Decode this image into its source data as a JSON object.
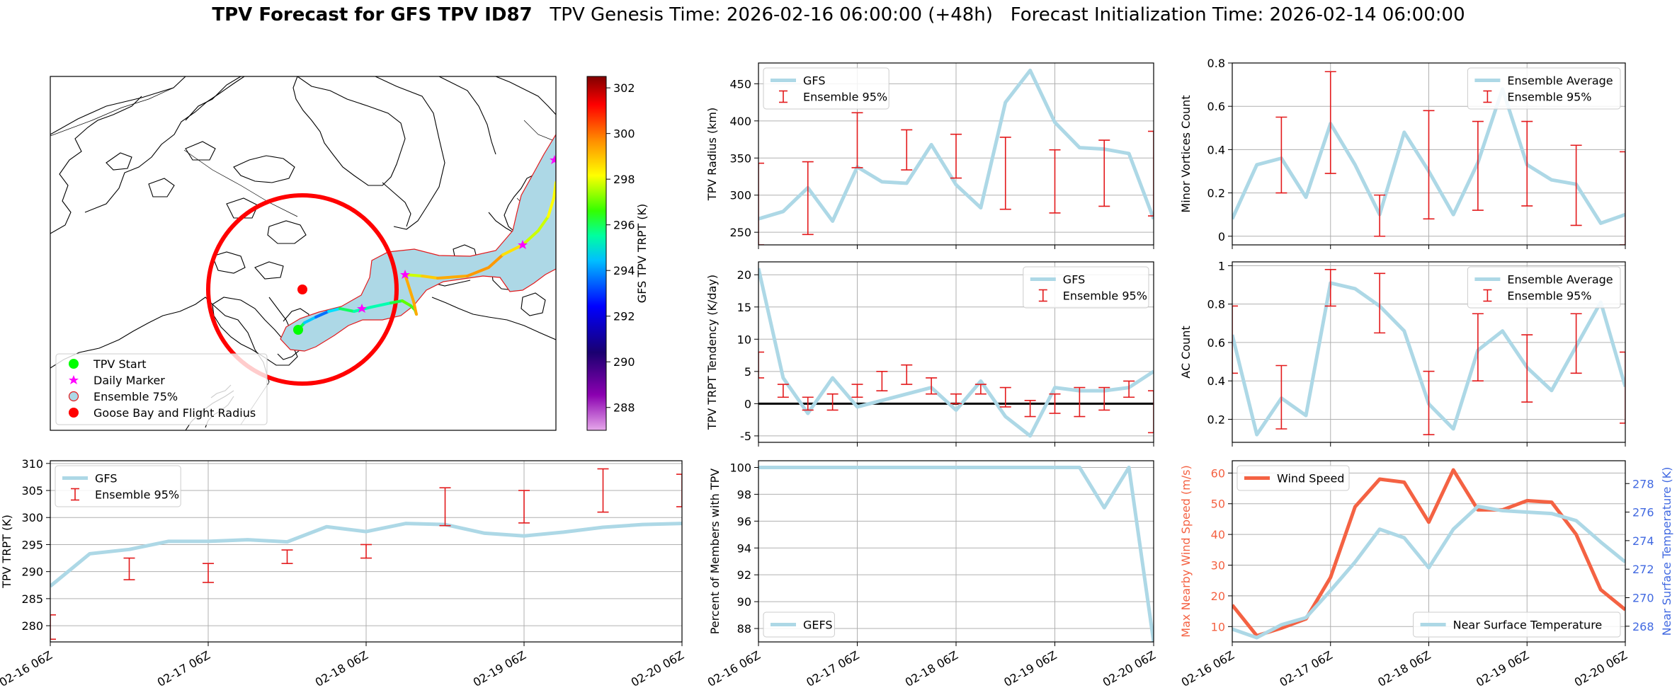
{
  "title": {
    "bold": "TPV Forecast for GFS TPV ID87",
    "genesis": "TPV Genesis Time: 2026-02-16 06:00:00 (+48h)",
    "init": "Forecast Initialization Time: 2026-02-14 06:00:00"
  },
  "colors": {
    "gfs": "#add8e6",
    "errorbar": "#e31a1c",
    "wind": "#f46243",
    "temp_axis": "#4169e1",
    "cone_fill": "#add8e6",
    "cone_edge": "#e31a1c",
    "radius_circle": "#ff0000"
  },
  "time_ticks": [
    "02-16 06Z",
    "02-17 06Z",
    "02-18 06Z",
    "02-19 06Z",
    "02-20 06Z"
  ],
  "chart_data": [
    {
      "id": "map",
      "type": "scatter",
      "title": "",
      "colorbar": {
        "label": "GFS TPV TRPT (K)",
        "ticks": [
          288,
          290,
          292,
          294,
          296,
          298,
          300,
          302
        ],
        "range": [
          287,
          302.5
        ]
      },
      "legend": {
        "placement": "lower-left",
        "entries": [
          {
            "label": "TPV Start",
            "marker": "circle",
            "color": "#00ff00"
          },
          {
            "label": "Daily Marker",
            "marker": "star",
            "color": "#ff00ff"
          },
          {
            "label": "Ensemble 75%",
            "marker": "circle-outline",
            "color": "#add8e6"
          },
          {
            "label": "Goose Bay and Flight Radius",
            "marker": "circle",
            "color": "#ff0000"
          }
        ]
      }
    },
    {
      "id": "radius",
      "type": "line",
      "ylabel": "TPV Radius (km)",
      "xlabel": "",
      "ylim": [
        233,
        478
      ],
      "yticks": [
        250,
        300,
        350,
        400,
        450
      ],
      "legend": [
        "GFS",
        "Ensemble 95%"
      ],
      "legend_loc": "upper-left",
      "series": [
        {
          "name": "GFS",
          "values": [
            268,
            278,
            310,
            265,
            338,
            318,
            316,
            368,
            314,
            283,
            425,
            468,
            398,
            364,
            362,
            356,
            268
          ]
        }
      ],
      "errorbars": [
        {
          "x": 0,
          "low": 233,
          "high": 343
        },
        {
          "x": 2,
          "low": 247,
          "high": 345
        },
        {
          "x": 4,
          "low": 337,
          "high": 411
        },
        {
          "x": 6,
          "low": 334,
          "high": 388
        },
        {
          "x": 8,
          "low": 323,
          "high": 382
        },
        {
          "x": 10,
          "low": 281,
          "high": 378
        },
        {
          "x": 12,
          "low": 276,
          "high": 361
        },
        {
          "x": 14,
          "low": 285,
          "high": 374
        },
        {
          "x": 16,
          "low": 272,
          "high": 386
        }
      ]
    },
    {
      "id": "minor",
      "type": "line",
      "ylabel": "Minor Vortices Count",
      "xlabel": "",
      "ylim": [
        -0.04,
        0.8
      ],
      "yticks": [
        0.0,
        0.2,
        0.4,
        0.6,
        0.8
      ],
      "legend": [
        "Ensemble Average",
        "Ensemble 95%"
      ],
      "legend_loc": "upper-right",
      "series": [
        {
          "name": "Ensemble Average",
          "values": [
            0.08,
            0.33,
            0.36,
            0.18,
            0.52,
            0.33,
            0.1,
            0.48,
            0.3,
            0.1,
            0.34,
            0.68,
            0.33,
            0.26,
            0.24,
            0.06,
            0.1
          ]
        }
      ],
      "errorbars": [
        {
          "x": 2,
          "low": 0.2,
          "high": 0.55
        },
        {
          "x": 4,
          "low": 0.29,
          "high": 0.76
        },
        {
          "x": 6,
          "low": 0.0,
          "high": 0.19
        },
        {
          "x": 8,
          "low": 0.08,
          "high": 0.58
        },
        {
          "x": 10,
          "low": 0.12,
          "high": 0.53
        },
        {
          "x": 12,
          "low": 0.14,
          "high": 0.53
        },
        {
          "x": 14,
          "low": 0.05,
          "high": 0.42
        },
        {
          "x": 16,
          "low": -0.04,
          "high": 0.39
        }
      ]
    },
    {
      "id": "tendency",
      "type": "line",
      "ylabel": "TPV TRPT Tendency (K/day)",
      "xlabel": "",
      "ylim": [
        -6,
        22
      ],
      "yticks": [
        -5,
        0,
        5,
        10,
        15,
        20
      ],
      "zero_line": true,
      "legend": [
        "GFS",
        "Ensemble 95%"
      ],
      "legend_loc": "upper-right",
      "series": [
        {
          "name": "GFS",
          "values": [
            21,
            4,
            -1.5,
            4,
            -0.5,
            0.5,
            1.5,
            2.5,
            -1,
            3.5,
            -2,
            -5,
            2.5,
            2,
            2,
            2.5,
            5
          ]
        }
      ],
      "errorbars": [
        {
          "x": 0,
          "low": 4,
          "high": 8
        },
        {
          "x": 1,
          "low": 1,
          "high": 3
        },
        {
          "x": 2,
          "low": -1,
          "high": 1
        },
        {
          "x": 3,
          "low": -1,
          "high": 1.5
        },
        {
          "x": 4,
          "low": 1,
          "high": 3
        },
        {
          "x": 5,
          "low": 2,
          "high": 5
        },
        {
          "x": 6,
          "low": 3,
          "high": 6
        },
        {
          "x": 7,
          "low": 1.5,
          "high": 4
        },
        {
          "x": 8,
          "low": 0,
          "high": 1.5
        },
        {
          "x": 9,
          "low": 1.5,
          "high": 3
        },
        {
          "x": 10,
          "low": -0.5,
          "high": 2.5
        },
        {
          "x": 11,
          "low": -2,
          "high": 0.5
        },
        {
          "x": 12,
          "low": -1.5,
          "high": 1.5
        },
        {
          "x": 13,
          "low": -2,
          "high": 2.5
        },
        {
          "x": 14,
          "low": -1,
          "high": 2.5
        },
        {
          "x": 15,
          "low": 1,
          "high": 3.5
        },
        {
          "x": 16,
          "low": -4.5,
          "high": 2
        }
      ]
    },
    {
      "id": "ac",
      "type": "line",
      "ylabel": "AC Count",
      "xlabel": "",
      "ylim": [
        0.08,
        1.02
      ],
      "yticks": [
        0.2,
        0.4,
        0.6,
        0.8,
        1.0
      ],
      "legend": [
        "Ensemble Average",
        "Ensemble 95%"
      ],
      "legend_loc": "upper-right",
      "series": [
        {
          "name": "Ensemble Average",
          "values": [
            0.64,
            0.12,
            0.31,
            0.22,
            0.91,
            0.88,
            0.79,
            0.66,
            0.28,
            0.15,
            0.56,
            0.66,
            0.47,
            0.35,
            0.58,
            0.81,
            0.37
          ]
        }
      ],
      "errorbars": [
        {
          "x": 0,
          "low": 0.44,
          "high": 0.79
        },
        {
          "x": 2,
          "low": 0.15,
          "high": 0.48
        },
        {
          "x": 4,
          "low": 0.79,
          "high": 0.98
        },
        {
          "x": 6,
          "low": 0.65,
          "high": 0.96
        },
        {
          "x": 8,
          "low": 0.12,
          "high": 0.45
        },
        {
          "x": 10,
          "low": 0.4,
          "high": 0.75
        },
        {
          "x": 12,
          "low": 0.29,
          "high": 0.64
        },
        {
          "x": 14,
          "low": 0.44,
          "high": 0.75
        },
        {
          "x": 16,
          "low": 0.18,
          "high": 0.55
        }
      ]
    },
    {
      "id": "trpt",
      "type": "line",
      "ylabel": "TPV TRPT (K)",
      "xlabel": "",
      "ylim": [
        277,
        310.5
      ],
      "yticks": [
        280,
        285,
        290,
        295,
        300,
        305,
        310
      ],
      "legend": [
        "GFS",
        "Ensemble 95%"
      ],
      "legend_loc": "upper-left",
      "series": [
        {
          "name": "GFS",
          "values": [
            287.3,
            293.3,
            294.1,
            295.6,
            295.6,
            295.9,
            295.5,
            298.3,
            297.4,
            298.9,
            298.7,
            297.1,
            296.6,
            297.3,
            298.2,
            298.7,
            298.9
          ]
        }
      ],
      "errorbars": [
        {
          "x": 0,
          "low": 277.5,
          "high": 282
        },
        {
          "x": 2,
          "low": 288.5,
          "high": 292.5
        },
        {
          "x": 4,
          "low": 288,
          "high": 291.5
        },
        {
          "x": 6,
          "low": 291.5,
          "high": 294
        },
        {
          "x": 8,
          "low": 292.5,
          "high": 295
        },
        {
          "x": 10,
          "low": 298.5,
          "high": 305.5
        },
        {
          "x": 12,
          "low": 299,
          "high": 305
        },
        {
          "x": 14,
          "low": 301,
          "high": 309
        },
        {
          "x": 16,
          "low": 302,
          "high": 308
        }
      ]
    },
    {
      "id": "members",
      "type": "line",
      "ylabel": "Percent of Members with TPV",
      "xlabel": "",
      "ylim": [
        87,
        100.5
      ],
      "yticks": [
        88,
        90,
        92,
        94,
        96,
        98,
        100
      ],
      "legend": [
        "GEFS"
      ],
      "legend_loc": "lower-left",
      "series": [
        {
          "name": "GEFS",
          "values": [
            100,
            100,
            100,
            100,
            100,
            100,
            100,
            100,
            100,
            100,
            100,
            100,
            100,
            100,
            97,
            100,
            87
          ]
        }
      ]
    },
    {
      "id": "wind",
      "type": "line",
      "ylabel": "Max Nearby Wind Speed (m/s)",
      "ylabel2": "Near Surface Temperature (K)",
      "xlabel": "",
      "ylim": [
        5,
        64
      ],
      "yticks": [
        10,
        20,
        30,
        40,
        50,
        60
      ],
      "ylim2": [
        266.9,
        279.6
      ],
      "yticks2": [
        268,
        270,
        272,
        274,
        276,
        278
      ],
      "legend": [
        "Wind Speed"
      ],
      "legend_loc": "upper-left",
      "legend2": [
        "Near Surface Temperature"
      ],
      "legend2_loc": "lower-right",
      "series": [
        {
          "name": "Wind Speed",
          "axis": "left",
          "values": [
            17,
            7,
            9.5,
            12.5,
            26,
            49,
            58,
            57,
            44,
            61,
            48,
            48,
            51,
            50.5,
            40,
            22,
            15.5
          ]
        },
        {
          "name": "Near Surface Temperature",
          "axis": "right",
          "values": [
            267.8,
            267.2,
            268.1,
            268.6,
            270.5,
            272.5,
            274.8,
            274.2,
            272.1,
            274.8,
            276.4,
            276.1,
            276.0,
            275.9,
            275.4,
            273.9,
            272.5
          ]
        }
      ]
    }
  ]
}
